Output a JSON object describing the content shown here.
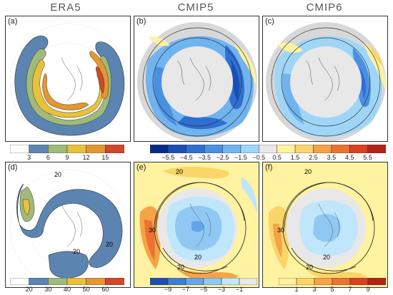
{
  "column_titles": [
    "ERA5",
    "CMIP5",
    "CMIP6"
  ],
  "panels": [
    {
      "label": "(a)",
      "kind": "era-top"
    },
    {
      "label": "(b)",
      "kind": "cmip-top"
    },
    {
      "label": "(c)",
      "kind": "cmip-top"
    },
    {
      "label": "(d)",
      "kind": "era-bottom"
    },
    {
      "label": "(e)",
      "kind": "cmip-bottom"
    },
    {
      "label": "(f)",
      "kind": "cmip-bottom"
    }
  ],
  "contour_labels": {
    "d": [
      "20",
      "20",
      "20"
    ],
    "e": [
      "20",
      "30",
      "20",
      "20"
    ],
    "f": [
      "20",
      "30",
      "20",
      "20"
    ]
  },
  "colorbars": {
    "era_top": {
      "ticks": [
        "3",
        "6",
        "9",
        "12",
        "15"
      ],
      "colors": [
        "#ffffff",
        "#5b84b1",
        "#9fba7a",
        "#e8c13b",
        "#e5962f",
        "#d2462a"
      ]
    },
    "cmip_top": {
      "ticks": [
        "−5.5",
        "−4.5",
        "−3.5",
        "−2.5",
        "−1.5",
        "−0.5",
        "0.5",
        "1.5",
        "2.5",
        "3.5",
        "4.5",
        "5.5"
      ],
      "colors": [
        "#0a2c86",
        "#1c4fb5",
        "#2f6fd3",
        "#4a90e2",
        "#6fb4ef",
        "#9fd6f7",
        "#e8e8e8",
        "#fff2a0",
        "#fad56a",
        "#f5a347",
        "#ec7232",
        "#dd3e24",
        "#b52316"
      ]
    },
    "era_bottom": {
      "ticks": [
        "20",
        "30",
        "40",
        "50",
        "60"
      ],
      "colors": [
        "#ffffff",
        "#5b84b1",
        "#9fba7a",
        "#e8c13b",
        "#e5962f",
        "#d2462a"
      ]
    },
    "cmip_bottom_left": {
      "ticks": [
        "−9",
        "−7",
        "−5",
        "−3",
        "−1"
      ],
      "colors": [
        "#1c4fb5",
        "#3d7fd6",
        "#63a5ea",
        "#8fc8f3",
        "#bfe6fb",
        "#e8e8e8"
      ]
    },
    "cmip_bottom_right": {
      "ticks": [
        "1",
        "3",
        "5",
        "7",
        "9"
      ],
      "colors": [
        "#fff2a0",
        "#fad56a",
        "#f5a347",
        "#ec7232",
        "#dd3e24",
        "#b52316"
      ]
    }
  }
}
